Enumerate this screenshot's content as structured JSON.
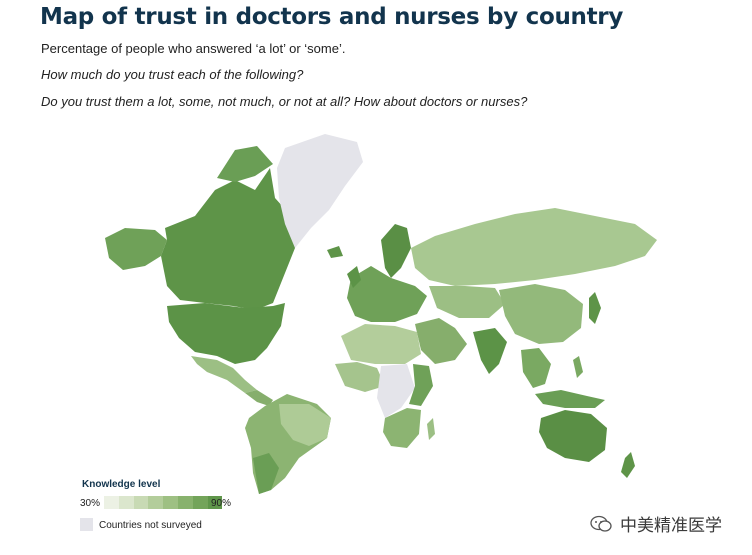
{
  "title": "Map of trust in doctors and nurses by country",
  "subtitle": "Percentage of people who answered ‘a lot’ or ‘some’.",
  "question_1": "How much do you trust each of the following?",
  "question_2": "Do you trust them a lot, some, not much, or not at all? How about doctors or nurses?",
  "legend": {
    "title": "Knowledge level",
    "min_label": "30%",
    "max_label": "90%",
    "not_surveyed_label": "Countries not surveyed",
    "scale_colors": [
      "#ecf1e4",
      "#dbe6cd",
      "#c8dab4",
      "#b3cd9b",
      "#9ec083",
      "#88b26d",
      "#73a45a",
      "#5f964a"
    ],
    "not_surveyed_color": "#e4e4ea"
  },
  "watermark": "中美精准医学"
}
